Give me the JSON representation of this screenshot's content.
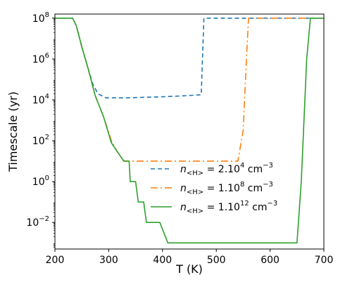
{
  "chart_data": {
    "type": "line",
    "xlabel": "T (K)",
    "ylabel": "Timescale (yr)",
    "xlim": [
      200,
      700
    ],
    "ylim_log10": [
      -3.3,
      8.2
    ],
    "y_scale": "log",
    "grid": false,
    "legend_placement": "lower-center",
    "x_ticks": [
      200,
      300,
      400,
      500,
      600,
      700
    ],
    "y_ticks": [
      {
        "exp": -2,
        "base": "10",
        "sup": "−2"
      },
      {
        "exp": 0,
        "base": "10",
        "sup": "0"
      },
      {
        "exp": 2,
        "base": "10",
        "sup": "2"
      },
      {
        "exp": 4,
        "base": "10",
        "sup": "4"
      },
      {
        "exp": 6,
        "base": "10",
        "sup": "6"
      },
      {
        "exp": 8,
        "base": "10",
        "sup": "8"
      }
    ],
    "series": [
      {
        "label_pre": "n",
        "label_sub": "<H>",
        "label_mid": " = 2.10",
        "label_sup": "4",
        "label_post": " cm",
        "label_unit_sup": "−3",
        "color": "#1f77b4",
        "dash": "6,4",
        "points": [
          [
            200,
            8
          ],
          [
            233,
            8
          ],
          [
            240,
            7.6
          ],
          [
            250,
            6.6
          ],
          [
            262,
            5.5
          ],
          [
            270,
            4.8
          ],
          [
            280,
            4.3
          ],
          [
            295,
            4.1
          ],
          [
            330,
            4.1
          ],
          [
            400,
            4.15
          ],
          [
            440,
            4.2
          ],
          [
            472,
            4.25
          ],
          [
            477,
            8
          ],
          [
            700,
            8
          ]
        ]
      },
      {
        "label_pre": "n",
        "label_sub": "<H>",
        "label_mid": " = 1.10",
        "label_sup": "8",
        "label_post": " cm",
        "label_unit_sup": "−3",
        "color": "#ff7f0e",
        "dash": "10,4,2,4",
        "points": [
          [
            200,
            8
          ],
          [
            233,
            8
          ],
          [
            240,
            7.6
          ],
          [
            250,
            6.6
          ],
          [
            262,
            5.5
          ],
          [
            275,
            4.2
          ],
          [
            290,
            3.2
          ],
          [
            305,
            2.0
          ],
          [
            315,
            1.5
          ],
          [
            325,
            1.1
          ],
          [
            330,
            1.0
          ],
          [
            540,
            1.0
          ],
          [
            550,
            2.5
          ],
          [
            556,
            6
          ],
          [
            560,
            8
          ],
          [
            700,
            8
          ]
        ]
      },
      {
        "label_pre": "n",
        "label_sub": "<H>",
        "label_mid": " = 1.10",
        "label_sup": "12",
        "label_post": " cm",
        "label_unit_sup": "−3",
        "color": "#2ca02c",
        "dash": "",
        "points": [
          [
            200,
            8
          ],
          [
            233,
            8
          ],
          [
            240,
            7.6
          ],
          [
            250,
            6.6
          ],
          [
            262,
            5.5
          ],
          [
            275,
            4.2
          ],
          [
            290,
            3.2
          ],
          [
            305,
            1.9
          ],
          [
            315,
            1.5
          ],
          [
            328,
            1.0
          ],
          [
            338,
            1.0
          ],
          [
            340,
            0
          ],
          [
            350,
            0
          ],
          [
            355,
            -1
          ],
          [
            365,
            -1
          ],
          [
            370,
            -2
          ],
          [
            380,
            -2
          ],
          [
            385,
            -2
          ],
          [
            395,
            -2
          ],
          [
            410,
            -3
          ],
          [
            650,
            -3
          ],
          [
            658,
            0
          ],
          [
            668,
            6
          ],
          [
            675,
            8
          ],
          [
            700,
            8
          ]
        ]
      }
    ]
  }
}
